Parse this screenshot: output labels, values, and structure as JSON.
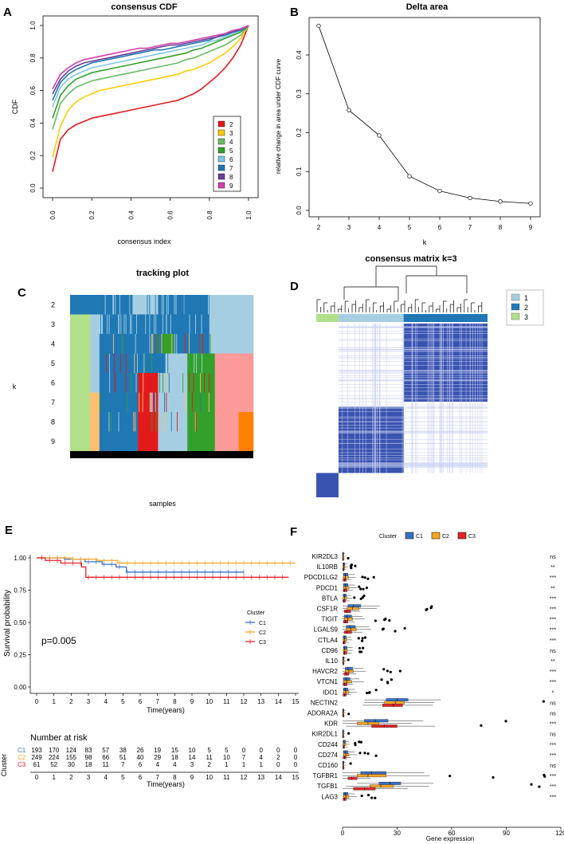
{
  "panel_labels": [
    "A",
    "B",
    "C",
    "D",
    "E",
    "F"
  ],
  "chart_data": [
    {
      "id": "A",
      "type": "line",
      "title": "consensus CDF",
      "xlabel": "consensus index",
      "ylabel": "CDF",
      "xlim": [
        0,
        1
      ],
      "ylim": [
        0,
        1
      ],
      "xticks": [
        "0.0",
        "0.2",
        "0.4",
        "0.6",
        "0.8",
        "1.0"
      ],
      "yticks": [
        "0.0",
        "0.2",
        "0.4",
        "0.6",
        "0.8",
        "1.0"
      ],
      "legend_position": "right",
      "series": [
        {
          "name": "2",
          "color": "#e41a1c",
          "y": [
            0.1,
            0.3,
            0.36,
            0.39,
            0.41,
            0.43,
            0.44,
            0.45,
            0.46,
            0.47,
            0.48,
            0.49,
            0.5,
            0.51,
            0.52,
            0.53,
            0.54,
            0.56,
            0.58,
            0.61,
            0.65,
            0.69,
            0.74,
            0.8,
            0.88,
            1.0
          ]
        },
        {
          "name": "3",
          "color": "#ffcc00",
          "y": [
            0.19,
            0.38,
            0.48,
            0.53,
            0.56,
            0.58,
            0.6,
            0.61,
            0.62,
            0.63,
            0.64,
            0.65,
            0.66,
            0.67,
            0.68,
            0.69,
            0.7,
            0.72,
            0.73,
            0.75,
            0.77,
            0.8,
            0.83,
            0.87,
            0.92,
            1.0
          ]
        },
        {
          "name": "4",
          "color": "#66bd63",
          "y": [
            0.36,
            0.52,
            0.58,
            0.62,
            0.64,
            0.66,
            0.67,
            0.68,
            0.69,
            0.7,
            0.71,
            0.72,
            0.73,
            0.74,
            0.75,
            0.76,
            0.77,
            0.79,
            0.8,
            0.82,
            0.84,
            0.86,
            0.88,
            0.91,
            0.94,
            1.0
          ]
        },
        {
          "name": "5",
          "color": "#33a02c",
          "y": [
            0.43,
            0.57,
            0.63,
            0.67,
            0.69,
            0.71,
            0.72,
            0.73,
            0.74,
            0.75,
            0.76,
            0.77,
            0.78,
            0.79,
            0.8,
            0.81,
            0.82,
            0.83,
            0.85,
            0.86,
            0.88,
            0.9,
            0.92,
            0.94,
            0.96,
            1.0
          ]
        },
        {
          "name": "6",
          "color": "#7ec8e3",
          "y": [
            0.5,
            0.62,
            0.67,
            0.7,
            0.72,
            0.74,
            0.75,
            0.76,
            0.77,
            0.78,
            0.79,
            0.8,
            0.81,
            0.82,
            0.83,
            0.84,
            0.85,
            0.86,
            0.87,
            0.88,
            0.9,
            0.91,
            0.93,
            0.95,
            0.97,
            1.0
          ]
        },
        {
          "name": "7",
          "color": "#1f78b4",
          "y": [
            0.54,
            0.65,
            0.7,
            0.73,
            0.75,
            0.77,
            0.78,
            0.79,
            0.8,
            0.81,
            0.82,
            0.83,
            0.84,
            0.85,
            0.85,
            0.86,
            0.87,
            0.88,
            0.89,
            0.9,
            0.91,
            0.93,
            0.94,
            0.96,
            0.97,
            1.0
          ]
        },
        {
          "name": "8",
          "color": "#6a3d9a",
          "y": [
            0.58,
            0.67,
            0.72,
            0.75,
            0.77,
            0.78,
            0.79,
            0.8,
            0.81,
            0.82,
            0.83,
            0.84,
            0.85,
            0.86,
            0.87,
            0.88,
            0.88,
            0.89,
            0.9,
            0.91,
            0.92,
            0.93,
            0.95,
            0.96,
            0.98,
            1.0
          ]
        },
        {
          "name": "9",
          "color": "#d33fa8",
          "y": [
            0.61,
            0.7,
            0.74,
            0.77,
            0.79,
            0.8,
            0.81,
            0.82,
            0.83,
            0.84,
            0.85,
            0.86,
            0.86,
            0.87,
            0.88,
            0.89,
            0.89,
            0.9,
            0.91,
            0.92,
            0.93,
            0.94,
            0.95,
            0.97,
            0.98,
            1.0
          ]
        }
      ]
    },
    {
      "id": "B",
      "type": "line",
      "title": "Delta area",
      "xlabel": "k",
      "ylabel": "relative change in area under CDF curve",
      "xlim": [
        2,
        9
      ],
      "ylim": [
        0,
        0.48
      ],
      "xticks": [
        "2",
        "3",
        "4",
        "5",
        "6",
        "7",
        "8",
        "9"
      ],
      "yticks": [
        "0.0",
        "0.1",
        "0.2",
        "0.3",
        "0.4"
      ],
      "x": [
        2,
        3,
        4,
        5,
        6,
        7,
        8,
        9
      ],
      "y": [
        0.475,
        0.258,
        0.193,
        0.088,
        0.05,
        0.032,
        0.023,
        0.018
      ]
    },
    {
      "id": "C",
      "type": "heatmap",
      "title": "tracking plot",
      "xlabel": "samples",
      "ylabel": "k",
      "row_labels": [
        "2",
        "3",
        "4",
        "5",
        "6",
        "7",
        "8",
        "9"
      ],
      "colors": {
        "c1": "#1f78b4",
        "c2": "#a6cee3",
        "c3": "#b2df8a",
        "c4": "#33a02c",
        "c5": "#fb9a99",
        "c6": "#e31a1c",
        "c7": "#fdbf6f",
        "c8": "#ff7f00"
      }
    },
    {
      "id": "D",
      "type": "heatmap",
      "title": "consensus matrix k=3",
      "legend": [
        {
          "label": "1",
          "color": "#a6cee3"
        },
        {
          "label": "2",
          "color": "#1f78b4"
        },
        {
          "label": "3",
          "color": "#b2df8a"
        }
      ]
    },
    {
      "id": "E",
      "type": "line",
      "title": "",
      "xlabel": "Time(years)",
      "ylabel": "Survival probability",
      "xlim": [
        0,
        15
      ],
      "ylim": [
        0,
        1
      ],
      "yticks": [
        "0.00",
        "0.25",
        "0.50",
        "0.75",
        "1.00"
      ],
      "xticks": [
        "0",
        "1",
        "2",
        "3",
        "4",
        "5",
        "6",
        "7",
        "8",
        "9",
        "10",
        "11",
        "12",
        "13",
        "14",
        "15"
      ],
      "annotation": "p=0.005",
      "legend_title": "Cluster",
      "series": [
        {
          "name": "C1",
          "color": "#3a6fc4",
          "steps": [
            [
              0,
              1.0
            ],
            [
              1.6,
              0.99
            ],
            [
              2.8,
              0.97
            ],
            [
              3.8,
              0.95
            ],
            [
              4.6,
              0.93
            ],
            [
              5.2,
              0.89
            ],
            [
              12,
              0.89
            ]
          ]
        },
        {
          "name": "C2",
          "color": "#f5a623",
          "steps": [
            [
              0,
              1.0
            ],
            [
              2.0,
              0.99
            ],
            [
              3.5,
              0.98
            ],
            [
              4.7,
              0.96
            ],
            [
              15,
              0.96
            ]
          ]
        },
        {
          "name": "C3",
          "color": "#e3242b",
          "steps": [
            [
              0,
              1.0
            ],
            [
              0.5,
              0.98
            ],
            [
              1.4,
              0.96
            ],
            [
              2.6,
              0.93
            ],
            [
              2.85,
              0.85
            ],
            [
              14.6,
              0.85
            ]
          ]
        }
      ],
      "risk_table": {
        "title": "Number at risk",
        "row_axis_label": "Cluster",
        "rows": [
          {
            "name": "C1",
            "color": "#3a6fc4",
            "values": [
              "193",
              "170",
              "124",
              "83",
              "57",
              "38",
              "26",
              "19",
              "15",
              "10",
              "5",
              "5",
              "0",
              "0",
              "0",
              "0"
            ]
          },
          {
            "name": "C2",
            "color": "#f5a623",
            "values": [
              "249",
              "224",
              "155",
              "98",
              "66",
              "51",
              "40",
              "29",
              "18",
              "14",
              "11",
              "10",
              "7",
              "4",
              "2",
              "0"
            ]
          },
          {
            "name": "C3",
            "color": "#e3242b",
            "values": [
              "61",
              "52",
              "30",
              "18",
              "11",
              "7",
              "6",
              "4",
              "4",
              "3",
              "2",
              "1",
              "1",
              "1",
              "0",
              "0"
            ]
          }
        ]
      }
    },
    {
      "id": "F",
      "type": "bar",
      "title": "",
      "xlabel": "Gene expression",
      "xlim": [
        0,
        120
      ],
      "xticks": [
        "0",
        "30",
        "60",
        "90",
        "120"
      ],
      "legend_title": "Cluster",
      "legend": [
        {
          "label": "C1",
          "color": "#3a6fc4"
        },
        {
          "label": "C2",
          "color": "#f5a623"
        },
        {
          "label": "C3",
          "color": "#e3242b"
        }
      ],
      "genes": [
        {
          "name": "KIR2DL3",
          "sig": "ns",
          "box": [
            [
              0,
              0.2,
              0.5
            ],
            [
              0,
              0.2,
              0.5
            ],
            [
              0,
              0.2,
              0.5
            ]
          ]
        },
        {
          "name": "IL10RB",
          "sig": "**",
          "box": [
            [
              0.2,
              0.6,
              1.2
            ],
            [
              0.2,
              0.7,
              1.3
            ],
            [
              0.1,
              0.4,
              0.9
            ]
          ]
        },
        {
          "name": "PDCD1LG2",
          "sig": "***",
          "box": [
            [
              0.5,
              1.5,
              3
            ],
            [
              0.5,
              1.5,
              3.2
            ],
            [
              0.3,
              1,
              2
            ]
          ]
        },
        {
          "name": "PDCD1",
          "sig": "**",
          "box": [
            [
              0.5,
              1.5,
              3
            ],
            [
              0.6,
              1.8,
              3.5
            ],
            [
              0.4,
              1.2,
              2.5
            ]
          ]
        },
        {
          "name": "BTLA",
          "sig": "***",
          "box": [
            [
              0.3,
              1,
              2
            ],
            [
              0.3,
              1.2,
              2.3
            ],
            [
              0.2,
              0.8,
              1.6
            ]
          ]
        },
        {
          "name": "CSF1R",
          "sig": "***",
          "box": [
            [
              3,
              6,
              10
            ],
            [
              2.5,
              5.5,
              9
            ],
            [
              1,
              2.5,
              4.5
            ]
          ]
        },
        {
          "name": "TIGIT",
          "sig": "***",
          "box": [
            [
              1,
              2.5,
              5
            ],
            [
              1,
              3,
              5.5
            ],
            [
              0.5,
              1.5,
              3
            ]
          ]
        },
        {
          "name": "LGALS9",
          "sig": "***",
          "box": [
            [
              2,
              4,
              7
            ],
            [
              2,
              4.5,
              7.5
            ],
            [
              1,
              2.5,
              5
            ]
          ]
        },
        {
          "name": "CTLA4",
          "sig": "***",
          "box": [
            [
              0.3,
              1,
              2
            ],
            [
              0.4,
              1.2,
              2.3
            ],
            [
              0.2,
              0.7,
              1.5
            ]
          ]
        },
        {
          "name": "CD96",
          "sig": "ns",
          "box": [
            [
              0.5,
              1.2,
              2.5
            ],
            [
              0.5,
              1.3,
              2.6
            ],
            [
              0.5,
              1.1,
              2.3
            ]
          ]
        },
        {
          "name": "IL10",
          "sig": "**",
          "box": [
            [
              0.1,
              0.3,
              0.8
            ],
            [
              0.1,
              0.4,
              0.9
            ],
            [
              0.1,
              0.2,
              0.5
            ]
          ]
        },
        {
          "name": "HAVCR2",
          "sig": "***",
          "box": [
            [
              1.5,
              3,
              5.5
            ],
            [
              1.5,
              3.5,
              6
            ],
            [
              0.8,
              2,
              3.5
            ]
          ]
        },
        {
          "name": "VTCN1",
          "sig": "***",
          "box": [
            [
              0.5,
              2,
              4
            ],
            [
              0.5,
              2.5,
              5
            ],
            [
              0.3,
              1,
              2.5
            ]
          ]
        },
        {
          "name": "IDO1",
          "sig": "*",
          "box": [
            [
              0.5,
              1.5,
              3
            ],
            [
              0.5,
              1.8,
              3.5
            ],
            [
              0.3,
              1,
              2
            ]
          ]
        },
        {
          "name": "NECTIN2",
          "sig": "ns",
          "box": [
            [
              24,
              30,
              36
            ],
            [
              23,
              29,
              34
            ],
            [
              22,
              28,
              33
            ]
          ]
        },
        {
          "name": "ADORA2A",
          "sig": "ns",
          "box": [
            [
              0.1,
              0.3,
              0.7
            ],
            [
              0.1,
              0.3,
              0.7
            ],
            [
              0.1,
              0.3,
              0.6
            ]
          ]
        },
        {
          "name": "KDR",
          "sig": "***",
          "box": [
            [
              12,
              18,
              25
            ],
            [
              8,
              14,
              20
            ],
            [
              16,
              23,
              30
            ]
          ]
        },
        {
          "name": "KIR2DL1",
          "sig": "ns",
          "box": [
            [
              0,
              0.2,
              0.5
            ],
            [
              0,
              0.2,
              0.5
            ],
            [
              0,
              0.2,
              0.5
            ]
          ]
        },
        {
          "name": "CD244",
          "sig": "***",
          "box": [
            [
              0.3,
              0.8,
              1.6
            ],
            [
              0.3,
              0.9,
              1.8
            ],
            [
              0.2,
              0.5,
              1.1
            ]
          ]
        },
        {
          "name": "CD274",
          "sig": "***",
          "box": [
            [
              0.5,
              1.5,
              3
            ],
            [
              0.6,
              1.8,
              3.5
            ],
            [
              0.3,
              1,
              2
            ]
          ]
        },
        {
          "name": "CD160",
          "sig": "ns",
          "box": [
            [
              0.1,
              0.3,
              0.7
            ],
            [
              0.1,
              0.3,
              0.7
            ],
            [
              0.1,
              0.3,
              0.6
            ]
          ]
        },
        {
          "name": "TGFBR1",
          "sig": "***",
          "box": [
            [
              10,
              16,
              24
            ],
            [
              8,
              14,
              24
            ],
            [
              3,
              5,
              8
            ]
          ]
        },
        {
          "name": "TGFB1",
          "sig": "***",
          "box": [
            [
              20,
              26,
              32
            ],
            [
              15,
              21,
              28
            ],
            [
              6,
              12,
              18
            ]
          ]
        },
        {
          "name": "LAG3",
          "sig": "***",
          "box": [
            [
              0.5,
              1.5,
              3
            ],
            [
              0.6,
              1.8,
              3.5
            ],
            [
              0.3,
              1,
              2
            ]
          ]
        }
      ]
    }
  ]
}
